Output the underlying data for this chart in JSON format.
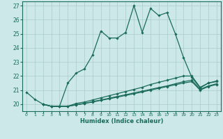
{
  "xlabel": "Humidex (Indice chaleur)",
  "xlim": [
    -0.5,
    23.5
  ],
  "ylim": [
    19.5,
    27.3
  ],
  "xticks": [
    0,
    1,
    2,
    3,
    4,
    5,
    6,
    7,
    8,
    9,
    10,
    11,
    12,
    13,
    14,
    15,
    16,
    17,
    18,
    19,
    20,
    21,
    22,
    23
  ],
  "yticks": [
    20,
    21,
    22,
    23,
    24,
    25,
    26,
    27
  ],
  "bg_color": "#cce8e8",
  "grid_color": "#aacccc",
  "line_color": "#1a6b5a",
  "spine_color": "#1a6b5a",
  "lines": [
    {
      "x": [
        0,
        1,
        2,
        3,
        4,
        5,
        6,
        7,
        8,
        9,
        10,
        11,
        12,
        13,
        14,
        15,
        16,
        17,
        18,
        19,
        20,
        21,
        22,
        23
      ],
      "y": [
        20.85,
        20.35,
        20.0,
        19.85,
        19.85,
        21.5,
        22.2,
        22.5,
        23.5,
        25.2,
        24.7,
        24.7,
        25.1,
        27.0,
        25.1,
        26.8,
        26.3,
        26.5,
        25.0,
        23.3,
        21.9,
        21.15,
        21.5,
        21.6
      ]
    },
    {
      "x": [
        2,
        3,
        4,
        5,
        6,
        7,
        8,
        9,
        10,
        11,
        12,
        13,
        14,
        15,
        16,
        17,
        18,
        19,
        20,
        21,
        22,
        23
      ],
      "y": [
        20.0,
        19.85,
        19.85,
        19.85,
        20.05,
        20.15,
        20.3,
        20.45,
        20.6,
        20.75,
        20.9,
        21.05,
        21.2,
        21.4,
        21.55,
        21.7,
        21.85,
        22.0,
        22.0,
        21.2,
        21.5,
        21.65
      ]
    },
    {
      "x": [
        2,
        3,
        4,
        5,
        6,
        7,
        8,
        9,
        10,
        11,
        12,
        13,
        14,
        15,
        16,
        17,
        18,
        19,
        20,
        21,
        22,
        23
      ],
      "y": [
        20.0,
        19.85,
        19.85,
        19.85,
        19.95,
        20.05,
        20.18,
        20.3,
        20.42,
        20.55,
        20.67,
        20.8,
        20.92,
        21.05,
        21.18,
        21.3,
        21.45,
        21.6,
        21.7,
        21.05,
        21.3,
        21.45
      ]
    },
    {
      "x": [
        2,
        3,
        4,
        5,
        6,
        7,
        8,
        9,
        10,
        11,
        12,
        13,
        14,
        15,
        16,
        17,
        18,
        19,
        20,
        21,
        22,
        23
      ],
      "y": [
        20.0,
        19.85,
        19.85,
        19.85,
        19.95,
        20.05,
        20.15,
        20.27,
        20.38,
        20.5,
        20.62,
        20.74,
        20.86,
        21.0,
        21.12,
        21.25,
        21.38,
        21.5,
        21.6,
        21.0,
        21.25,
        21.4
      ]
    }
  ]
}
